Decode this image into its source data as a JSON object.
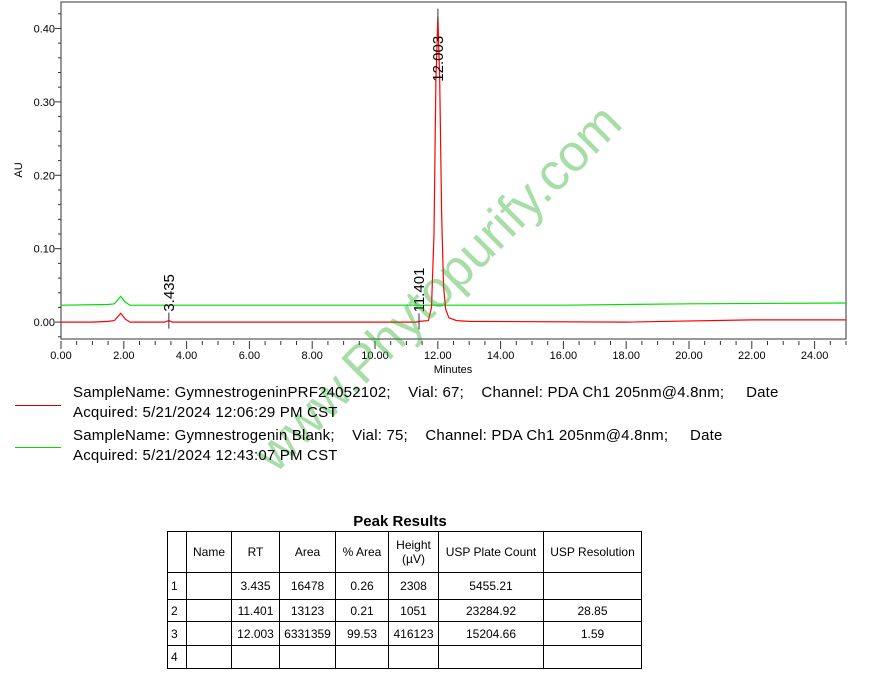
{
  "chart_data": {
    "type": "line",
    "xlabel": "Minutes",
    "ylabel": "AU",
    "xlim": [
      0,
      25
    ],
    "ylim": [
      -0.023,
      0.436
    ],
    "xticks": [
      "0.00",
      "2.00",
      "4.00",
      "6.00",
      "8.00",
      "10.00",
      "12.00",
      "14.00",
      "16.00",
      "18.00",
      "20.00",
      "22.00",
      "24.00"
    ],
    "yticks": [
      "0.00",
      "0.10",
      "0.20",
      "0.30",
      "0.40"
    ],
    "grid": false,
    "series": [
      {
        "color": "#ff0000",
        "points": [
          [
            0,
            0.0
          ],
          [
            1.0,
            0.0
          ],
          [
            1.5,
            0.001
          ],
          [
            1.7,
            0.002
          ],
          [
            1.9,
            0.012
          ],
          [
            2.05,
            0.004
          ],
          [
            2.2,
            0.0
          ],
          [
            3.3,
            0.0
          ],
          [
            3.435,
            0.002
          ],
          [
            3.55,
            0.0
          ],
          [
            11.3,
            0.0
          ],
          [
            11.401,
            0.001
          ],
          [
            11.7,
            0.002
          ],
          [
            11.8,
            0.02
          ],
          [
            11.88,
            0.12
          ],
          [
            11.94,
            0.33
          ],
          [
            12.003,
            0.416
          ],
          [
            12.06,
            0.33
          ],
          [
            12.12,
            0.15
          ],
          [
            12.18,
            0.05
          ],
          [
            12.25,
            0.018
          ],
          [
            12.35,
            0.006
          ],
          [
            12.6,
            0.002
          ],
          [
            13.0,
            0.001
          ],
          [
            18,
            0.0
          ],
          [
            22,
            0.003
          ],
          [
            25,
            0.003
          ]
        ]
      },
      {
        "color": "#00e000",
        "points": [
          [
            0,
            0.023
          ],
          [
            1.5,
            0.024
          ],
          [
            1.7,
            0.025
          ],
          [
            1.9,
            0.035
          ],
          [
            2.05,
            0.027
          ],
          [
            2.2,
            0.023
          ],
          [
            10,
            0.023
          ],
          [
            16,
            0.023
          ],
          [
            20,
            0.025
          ],
          [
            25,
            0.026
          ]
        ]
      }
    ],
    "peak_labels": [
      {
        "rt": "3.435",
        "x": 3.435,
        "y": 0.002
      },
      {
        "rt": "11.401",
        "x": 11.401,
        "y": 0.001
      },
      {
        "rt": "12.003",
        "x": 12.003,
        "y": 0.416
      }
    ]
  },
  "legend": [
    {
      "color": "#cc0000",
      "line1": "SampleName: GymnestrogeninPRF24052102;    Vial: 67;    Channel: PDA Ch1 205nm@4.8nm;     Date",
      "line2": "Acquired: 5/21/2024 12:06:29 PM CST"
    },
    {
      "color": "#00dd00",
      "line1": "SampleName: Gymnestrogenin Blank;    Vial: 75;    Channel: PDA Ch1 205nm@4.8nm;     Date",
      "line2": "Acquired: 5/21/2024 12:43:07 PM CST"
    }
  ],
  "watermark": "www.Phytopurify.com",
  "peak_results": {
    "title": "Peak Results",
    "headers": [
      "",
      "Name",
      "RT",
      "Area",
      "% Area",
      "Height (µV)",
      "USP Plate Count",
      "USP Resolution"
    ],
    "rows": [
      [
        "1",
        "",
        "3.435",
        "16478",
        "0.26",
        "2308",
        "5455.21",
        ""
      ],
      [
        "2",
        "",
        "11.401",
        "13123",
        "0.21",
        "1051",
        "23284.92",
        "28.85"
      ],
      [
        "3",
        "",
        "12.003",
        "6331359",
        "99.53",
        "416123",
        "15204.66",
        "1.59"
      ],
      [
        "4",
        "",
        "",
        "",
        "",
        "",
        "",
        ""
      ]
    ]
  }
}
